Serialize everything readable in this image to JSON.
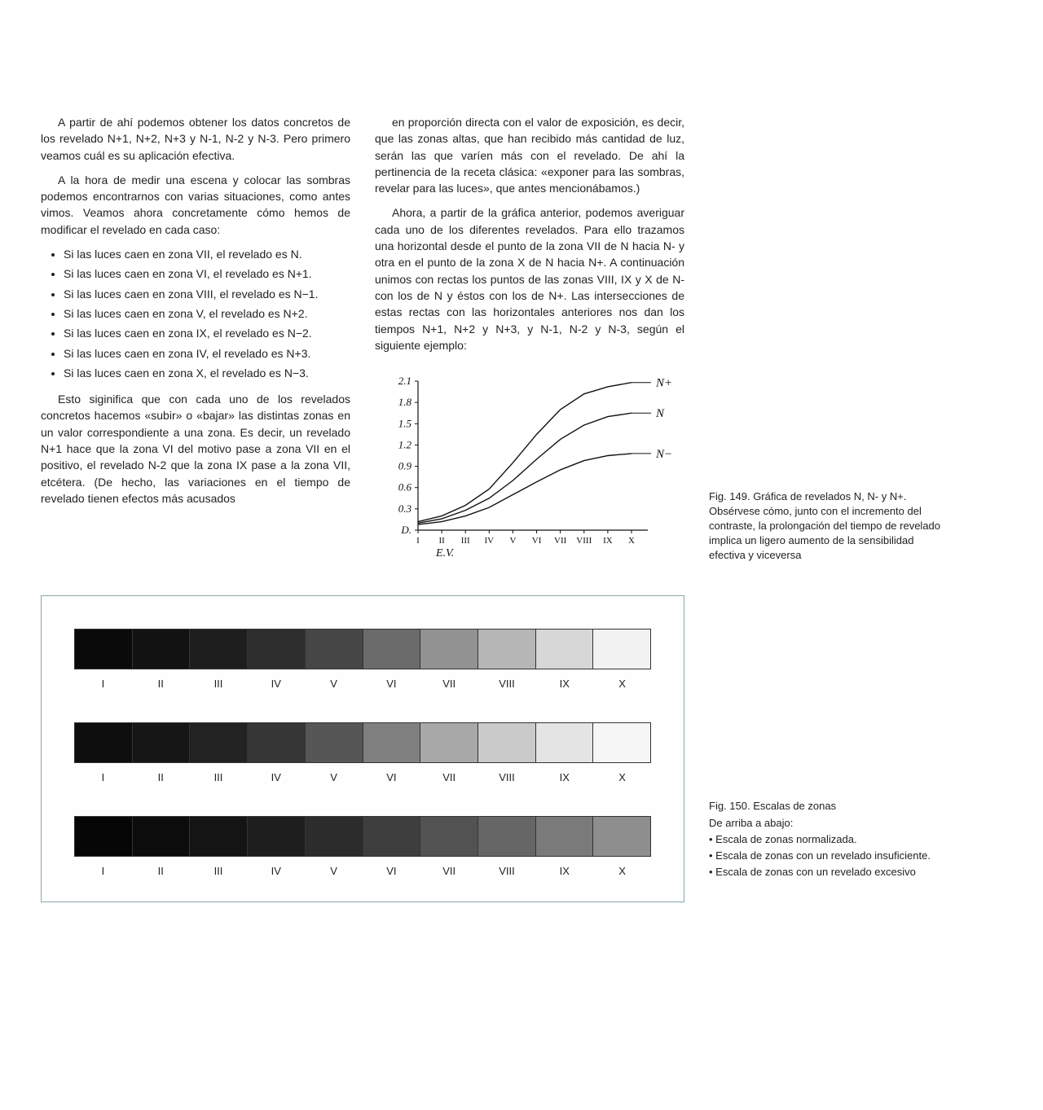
{
  "col1": {
    "p1": "A partir de ahí podemos obtener los datos concretos de los revelado N+1, N+2, N+3 y N-1, N-2 y N-3. Pero primero veamos cuál es su aplicación efectiva.",
    "p2": "A la hora de medir una escena y colocar las sombras podemos encontrarnos con varias situaciones, como antes vimos. Veamos ahora concretamente cómo hemos de modificar el revelado en cada caso:",
    "bullets": [
      "Si las luces caen en zona VII, el revelado es N.",
      "Si las luces caen en zona VI, el revelado es N+1.",
      "Si las luces caen en zona VIII, el revelado es N−1.",
      "Si las luces caen en zona V, el revelado es N+2.",
      "Si las luces caen en zona IX, el revelado es N−2.",
      "Si las luces caen en zona IV, el revelado es N+3.",
      "Si las luces caen en zona X, el revelado es N−3."
    ],
    "p3": "Esto siginifica que con cada uno de los revelados concretos hacemos «subir» o «bajar» las distintas zonas en un valor correspondiente a una zona. Es decir, un revelado N+1 hace que la zona VI del motivo pase a zona VII en el positivo, el revelado N-2 que la zona IX pase a la zona VII, etcétera. (De hecho, las variaciones en el tiempo de revelado tienen efectos más acusados"
  },
  "col2": {
    "p1": "en proporción directa con el valor de exposición, es decir, que las zonas altas, que han recibido más cantidad de luz, serán las que varíen más con el revelado. De ahí la pertinencia de la receta clásica: «exponer para las sombras, revelar para las luces», que antes mencionábamos.)",
    "p2": "Ahora, a partir de la gráfica anterior, podemos averiguar cada uno de los diferentes revelados. Para ello trazamos una horizontal desde el punto de la zona VII de N hacia N- y otra en el punto de la zona X de N hacia N+. A continuación unimos con rectas los puntos de las zonas VIII, IX y X de N- con los de N y éstos con los de N+. Las intersecciones de estas rectas con las horizontales anteriores nos dan los tiempos N+1, N+2 y N+3, y N-1, N-2 y N-3, según el siguiente ejemplo:"
  },
  "chart": {
    "y_ticks": [
      "2.1",
      "1.8",
      "1.5",
      "1.2",
      "0.9",
      "0.6",
      "0.3",
      "D."
    ],
    "x_ticks": [
      "I",
      "II",
      "III",
      "IV",
      "V",
      "VI",
      "VII",
      "VIII",
      "IX",
      "X"
    ],
    "x_label": "E.V.",
    "series": [
      {
        "label": "N+",
        "points": [
          {
            "x": 0,
            "y": 0.12
          },
          {
            "x": 1,
            "y": 0.2
          },
          {
            "x": 2,
            "y": 0.35
          },
          {
            "x": 3,
            "y": 0.58
          },
          {
            "x": 4,
            "y": 0.95
          },
          {
            "x": 5,
            "y": 1.35
          },
          {
            "x": 6,
            "y": 1.7
          },
          {
            "x": 7,
            "y": 1.92
          },
          {
            "x": 8,
            "y": 2.02
          },
          {
            "x": 9,
            "y": 2.08
          }
        ]
      },
      {
        "label": "N",
        "points": [
          {
            "x": 0,
            "y": 0.1
          },
          {
            "x": 1,
            "y": 0.16
          },
          {
            "x": 2,
            "y": 0.28
          },
          {
            "x": 3,
            "y": 0.45
          },
          {
            "x": 4,
            "y": 0.7
          },
          {
            "x": 5,
            "y": 1.0
          },
          {
            "x": 6,
            "y": 1.28
          },
          {
            "x": 7,
            "y": 1.48
          },
          {
            "x": 8,
            "y": 1.6
          },
          {
            "x": 9,
            "y": 1.65
          }
        ]
      },
      {
        "label": "N−",
        "points": [
          {
            "x": 0,
            "y": 0.08
          },
          {
            "x": 1,
            "y": 0.12
          },
          {
            "x": 2,
            "y": 0.2
          },
          {
            "x": 3,
            "y": 0.32
          },
          {
            "x": 4,
            "y": 0.5
          },
          {
            "x": 5,
            "y": 0.68
          },
          {
            "x": 6,
            "y": 0.85
          },
          {
            "x": 7,
            "y": 0.98
          },
          {
            "x": 8,
            "y": 1.05
          },
          {
            "x": 9,
            "y": 1.08
          }
        ]
      }
    ],
    "y_max": 2.1,
    "stroke": "#111",
    "stroke_width": 1.4
  },
  "fig149": "Fig. 149. Gráfica de revelados N, N- y N+. Obsérvese cómo, junto con el incremento del contraste, la prolongación del tiempo de revelado implica un ligero aumento de la sensibilidad efectiva y viceversa",
  "scales": {
    "roman": [
      "I",
      "II",
      "III",
      "IV",
      "V",
      "VI",
      "VII",
      "VIII",
      "IX",
      "X"
    ],
    "strips": [
      {
        "colors": [
          "#0a0a0a",
          "#121212",
          "#1e1e1e",
          "#2e2e2e",
          "#464646",
          "#6b6b6b",
          "#929292",
          "#b6b6b6",
          "#d7d7d7",
          "#f2f2f2"
        ]
      },
      {
        "colors": [
          "#0e0e0e",
          "#161616",
          "#222222",
          "#363636",
          "#565656",
          "#808080",
          "#a8a8a8",
          "#cacaca",
          "#e4e4e4",
          "#f6f6f6"
        ]
      },
      {
        "colors": [
          "#060606",
          "#0c0c0c",
          "#141414",
          "#1e1e1e",
          "#2c2c2c",
          "#3e3e3e",
          "#525252",
          "#666666",
          "#7a7a7a",
          "#8e8e8e"
        ]
      }
    ]
  },
  "fig150": {
    "title": "Fig. 150. Escalas de zonas",
    "sub": "De arriba a abajo:",
    "items": [
      "• Escala de zonas normalizada.",
      "• Escala de zonas con un revelado insuficiente.",
      "•  Escala de zonas con un revelado excesivo"
    ]
  }
}
